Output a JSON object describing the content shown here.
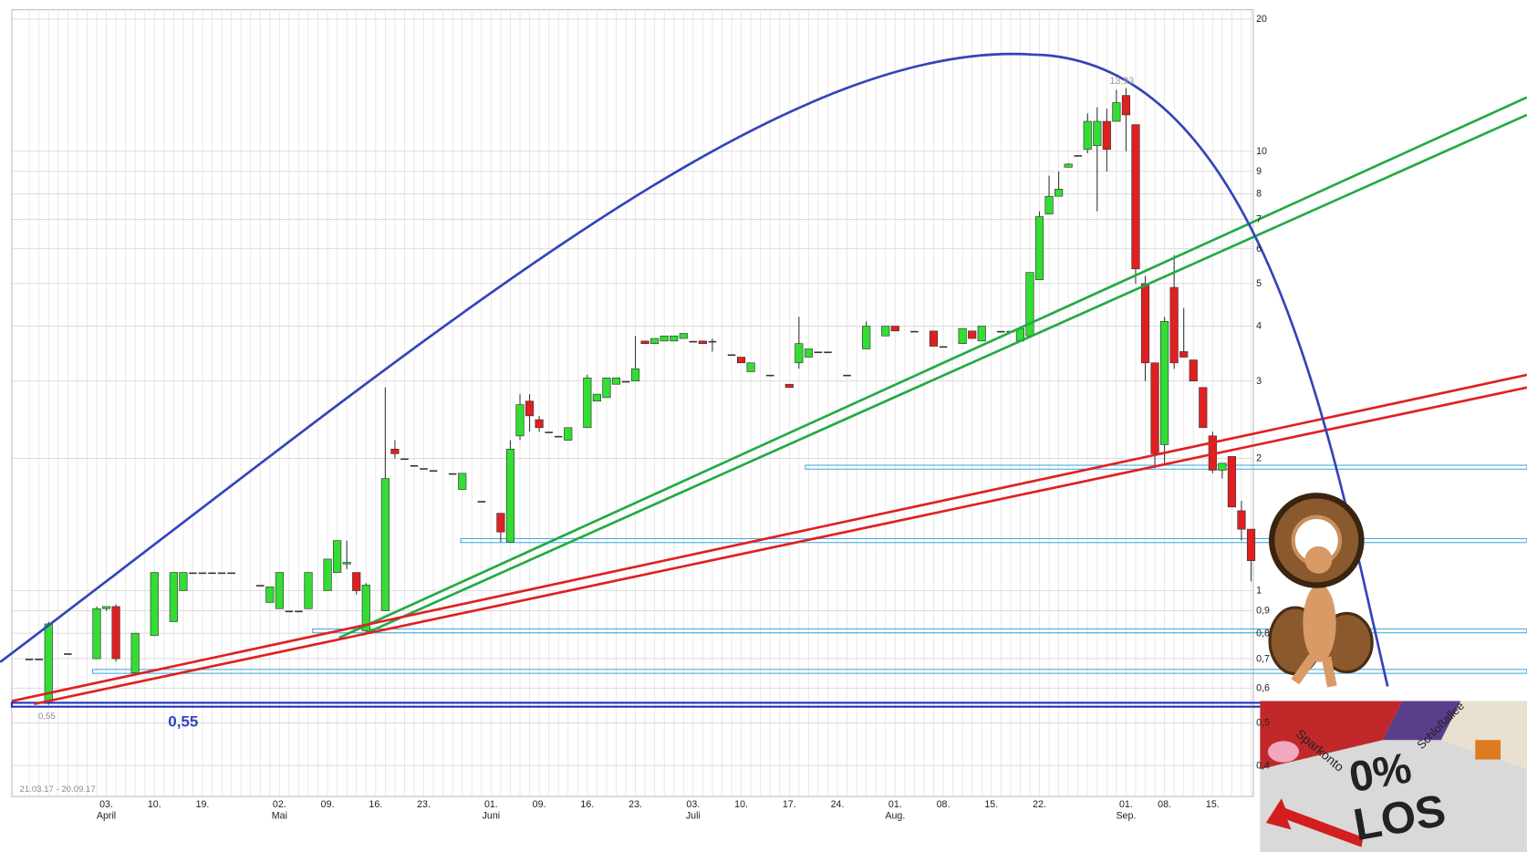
{
  "chart_data": {
    "type": "candlestick",
    "log_scale": true,
    "grid": true,
    "up_color": "#33dd33",
    "down_color": "#e02020",
    "ylim": [
      0.34,
      21
    ],
    "yticks": [
      20,
      10,
      9,
      8,
      7,
      6,
      5,
      4,
      3,
      2,
      1,
      {
        "value": 0.9,
        "label": "0,9"
      },
      {
        "value": 0.8,
        "label": "0,8"
      },
      {
        "value": 0.7,
        "label": "0,7"
      },
      {
        "value": 0.6,
        "label": "0,6"
      },
      {
        "value": 0.5,
        "label": "0,5"
      },
      {
        "value": 0.4,
        "label": "0,4"
      }
    ],
    "categories": [
      null,
      null,
      null,
      null,
      null,
      null,
      null,
      null,
      "03.",
      null,
      null,
      null,
      null,
      "10.",
      null,
      null,
      null,
      null,
      "19.",
      null,
      null,
      null,
      null,
      null,
      null,
      null,
      "02.",
      null,
      null,
      null,
      null,
      "09.",
      null,
      null,
      null,
      null,
      "16.",
      null,
      null,
      null,
      null,
      "23.",
      null,
      null,
      null,
      null,
      null,
      null,
      "01.",
      null,
      null,
      null,
      null,
      "09.",
      null,
      null,
      null,
      null,
      "16.",
      null,
      null,
      null,
      null,
      "23.",
      null,
      null,
      null,
      null,
      null,
      "03.",
      null,
      null,
      null,
      null,
      "10.",
      null,
      null,
      null,
      null,
      "17.",
      null,
      null,
      null,
      null,
      "24.",
      null,
      null,
      null,
      null,
      null,
      "01.",
      null,
      null,
      null,
      null,
      "08.",
      null,
      null,
      null,
      null,
      "15.",
      null,
      null,
      null,
      null,
      "22.",
      null,
      null,
      null,
      null,
      null,
      null,
      null,
      null,
      "01.",
      null,
      null,
      null,
      "08.",
      null,
      null,
      null,
      null,
      "15.",
      null,
      null,
      null,
      null
    ],
    "months": [
      null,
      null,
      null,
      null,
      null,
      null,
      null,
      null,
      "April",
      null,
      null,
      null,
      null,
      null,
      null,
      null,
      null,
      null,
      null,
      null,
      null,
      null,
      null,
      null,
      null,
      null,
      "Mai",
      null,
      null,
      null,
      null,
      null,
      null,
      null,
      null,
      null,
      null,
      null,
      null,
      null,
      null,
      null,
      null,
      null,
      null,
      null,
      null,
      null,
      "Juni",
      null,
      null,
      null,
      null,
      null,
      null,
      null,
      null,
      null,
      null,
      null,
      null,
      null,
      null,
      null,
      null,
      null,
      null,
      null,
      null,
      "Juli",
      null,
      null,
      null,
      null,
      null,
      null,
      null,
      null,
      null,
      null,
      null,
      null,
      null,
      null,
      null,
      null,
      null,
      null,
      null,
      null,
      "Aug.",
      null,
      null,
      null,
      null,
      null,
      null,
      null,
      null,
      null,
      null,
      null,
      null,
      null,
      null,
      null,
      null,
      null,
      null,
      null,
      null,
      null,
      null,
      null,
      "Sep.",
      null,
      null,
      null,
      null,
      null,
      null,
      null,
      null,
      null,
      null,
      null,
      null,
      null
    ],
    "ohlc": [
      [
        0.7,
        0.7,
        0.7,
        0.7
      ],
      [
        0.7,
        0.7,
        0.7,
        0.7
      ],
      [
        0.56,
        0.85,
        0.55,
        0.84
      ],
      null,
      [
        0.72,
        0.72,
        0.72,
        0.72
      ],
      null,
      null,
      [
        0.7,
        0.92,
        0.7,
        0.91
      ],
      [
        0.91,
        0.92,
        0.9,
        0.92
      ],
      [
        0.92,
        0.93,
        0.69,
        0.7
      ],
      null,
      [
        0.65,
        0.8,
        0.64,
        0.8
      ],
      null,
      [
        0.79,
        1.1,
        0.79,
        1.1
      ],
      null,
      [
        0.85,
        1.1,
        0.85,
        1.1
      ],
      [
        1.0,
        1.1,
        1.0,
        1.1
      ],
      [
        1.1,
        1.1,
        1.1,
        1.1
      ],
      [
        1.1,
        1.1,
        1.1,
        1.1
      ],
      [
        1.1,
        1.1,
        1.1,
        1.1
      ],
      [
        1.1,
        1.1,
        1.1,
        1.1
      ],
      [
        1.1,
        1.1,
        1.1,
        1.1
      ],
      null,
      null,
      [
        1.03,
        1.03,
        1.03,
        1.03
      ],
      [
        0.94,
        1.02,
        0.94,
        1.02
      ],
      [
        0.91,
        1.1,
        0.91,
        1.1
      ],
      [
        0.9,
        0.9,
        0.9,
        0.9
      ],
      [
        0.9,
        0.9,
        0.9,
        0.9
      ],
      [
        0.91,
        1.1,
        0.91,
        1.1
      ],
      null,
      [
        1.0,
        1.18,
        1.0,
        1.18
      ],
      [
        1.1,
        1.3,
        1.1,
        1.3
      ],
      [
        1.15,
        1.3,
        1.12,
        1.16
      ],
      [
        1.1,
        1.1,
        0.98,
        1.0
      ],
      [
        0.81,
        1.04,
        0.8,
        1.03
      ],
      null,
      [
        0.9,
        2.9,
        0.9,
        1.8
      ],
      [
        2.1,
        2.2,
        2.0,
        2.05
      ],
      [
        2.0,
        2.0,
        2.0,
        2.0
      ],
      [
        1.93,
        1.93,
        1.93,
        1.93
      ],
      [
        1.9,
        1.9,
        1.9,
        1.9
      ],
      [
        1.88,
        1.88,
        1.88,
        1.88
      ],
      null,
      [
        1.85,
        1.85,
        1.85,
        1.85
      ],
      [
        1.7,
        1.85,
        1.7,
        1.85
      ],
      null,
      [
        1.6,
        1.6,
        1.6,
        1.6
      ],
      null,
      [
        1.5,
        1.5,
        1.29,
        1.36
      ],
      [
        1.29,
        2.2,
        1.29,
        2.1
      ],
      [
        2.25,
        2.8,
        2.2,
        2.65
      ],
      [
        2.7,
        2.8,
        2.3,
        2.5
      ],
      [
        2.45,
        2.5,
        2.3,
        2.35
      ],
      [
        2.3,
        2.3,
        2.3,
        2.3
      ],
      [
        2.25,
        2.25,
        2.25,
        2.25
      ],
      [
        2.2,
        2.35,
        2.2,
        2.35
      ],
      null,
      [
        2.35,
        3.1,
        2.35,
        3.05
      ],
      [
        2.7,
        2.8,
        2.7,
        2.8
      ],
      [
        2.75,
        3.05,
        2.75,
        3.05
      ],
      [
        2.95,
        3.05,
        2.95,
        3.05
      ],
      [
        3.0,
        3.0,
        3.0,
        3.0
      ],
      [
        3.0,
        3.8,
        3.0,
        3.2
      ],
      [
        3.7,
        3.7,
        3.65,
        3.65
      ],
      [
        3.65,
        3.75,
        3.65,
        3.75
      ],
      [
        3.7,
        3.8,
        3.7,
        3.8
      ],
      [
        3.7,
        3.8,
        3.7,
        3.8
      ],
      [
        3.75,
        3.85,
        3.75,
        3.85
      ],
      [
        3.7,
        3.7,
        3.7,
        3.7
      ],
      [
        3.7,
        3.7,
        3.65,
        3.65
      ],
      [
        3.7,
        3.75,
        3.5,
        3.7
      ],
      null,
      [
        3.45,
        3.45,
        3.45,
        3.45
      ],
      [
        3.4,
        3.4,
        3.3,
        3.3
      ],
      [
        3.15,
        3.3,
        3.15,
        3.3
      ],
      null,
      [
        3.1,
        3.1,
        3.1,
        3.1
      ],
      null,
      [
        2.95,
        2.95,
        2.9,
        2.9
      ],
      [
        3.3,
        4.2,
        3.2,
        3.65
      ],
      [
        3.4,
        3.55,
        3.4,
        3.55
      ],
      [
        3.5,
        3.5,
        3.5,
        3.5
      ],
      [
        3.5,
        3.5,
        3.5,
        3.5
      ],
      null,
      [
        3.1,
        3.1,
        3.1,
        3.1
      ],
      null,
      [
        3.55,
        4.1,
        3.55,
        4.0
      ],
      null,
      [
        3.8,
        4.0,
        3.8,
        4.0
      ],
      [
        4.0,
        4.0,
        3.9,
        3.9
      ],
      null,
      [
        3.9,
        3.9,
        3.9,
        3.9
      ],
      null,
      [
        3.9,
        3.9,
        3.6,
        3.6
      ],
      [
        3.6,
        3.6,
        3.6,
        3.6
      ],
      null,
      [
        3.65,
        3.95,
        3.65,
        3.95
      ],
      [
        3.9,
        3.9,
        3.75,
        3.75
      ],
      [
        3.7,
        4.0,
        3.7,
        4.0
      ],
      null,
      [
        3.9,
        3.9,
        3.9,
        3.9
      ],
      [
        3.9,
        3.9,
        3.9,
        3.9
      ],
      [
        3.7,
        3.95,
        3.7,
        3.95
      ],
      [
        3.8,
        5.3,
        3.8,
        5.3
      ],
      [
        5.1,
        7.3,
        5.1,
        7.1
      ],
      [
        7.2,
        8.8,
        7.2,
        7.9
      ],
      [
        7.9,
        9.0,
        7.9,
        8.2
      ],
      [
        9.2,
        9.4,
        9.2,
        9.35
      ],
      [
        9.8,
        9.8,
        9.8,
        9.8
      ],
      [
        10.1,
        12.2,
        9.9,
        11.7
      ],
      [
        10.3,
        12.6,
        7.3,
        11.7
      ],
      [
        11.7,
        12.5,
        9.0,
        10.1
      ],
      [
        11.7,
        13.8,
        11.7,
        12.9
      ],
      [
        13.4,
        13.93,
        10.0,
        12.1
      ],
      [
        11.5,
        11.5,
        5.0,
        5.4
      ],
      [
        5.0,
        5.2,
        3.0,
        3.3
      ],
      [
        3.3,
        3.3,
        1.9,
        2.05
      ],
      [
        2.15,
        4.2,
        1.95,
        4.1
      ],
      [
        4.9,
        5.8,
        3.2,
        3.3
      ],
      [
        3.5,
        4.4,
        3.4,
        3.4
      ],
      [
        3.35,
        3.35,
        3.0,
        3.0
      ],
      [
        2.9,
        2.9,
        2.35,
        2.35
      ],
      [
        2.25,
        2.3,
        1.85,
        1.88
      ],
      [
        1.88,
        1.95,
        1.8,
        1.95
      ],
      [
        2.02,
        2.02,
        1.55,
        1.55
      ],
      [
        1.52,
        1.6,
        1.3,
        1.38
      ],
      [
        1.38,
        1.38,
        1.05,
        1.17
      ]
    ],
    "levels": [
      1.91,
      1.3,
      0.81,
      0.655
    ],
    "support_level": 0.55,
    "support_label": "0,55",
    "low_label": "0,55",
    "high_label": "13,93",
    "date_range": "21.03.17 - 20.09.17"
  },
  "image": {
    "texts": [
      "0%",
      "LOS",
      "Sparkonto",
      "Schloßallee"
    ]
  }
}
